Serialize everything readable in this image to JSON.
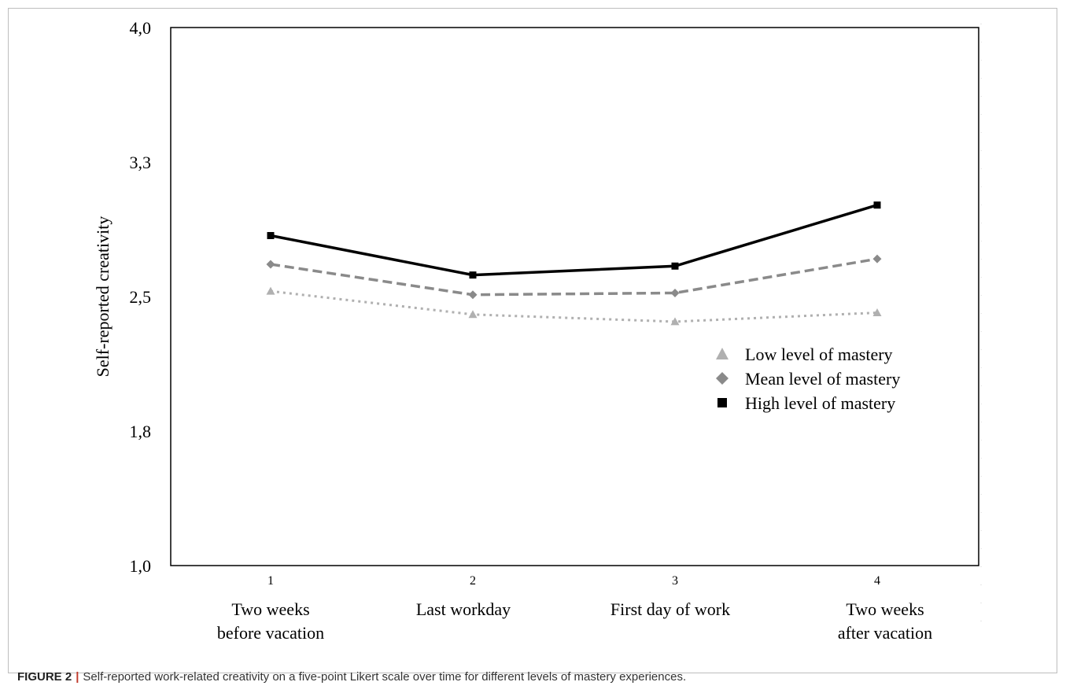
{
  "chart_data": {
    "type": "line",
    "title": "",
    "ylabel": "Self-reported creativity",
    "xlabel": "",
    "ylim": [
      1.0,
      4.0
    ],
    "ytick_labels": [
      "1,0",
      "1,8",
      "2,5",
      "3,3",
      "4,0"
    ],
    "x": [
      1,
      2,
      3,
      4
    ],
    "xtick_labels": [
      "1",
      "2",
      "3",
      "4"
    ],
    "x_category_labels": [
      [
        "Two weeks",
        "before vacation"
      ],
      [
        "Last workday"
      ],
      [
        "First day of work"
      ],
      [
        "Two weeks",
        "after vacation"
      ]
    ],
    "series": [
      {
        "name": "Low level of mastery",
        "values": [
          2.53,
          2.4,
          2.36,
          2.41
        ],
        "marker": "triangle",
        "line": "dotted",
        "color": "#b0b0b0"
      },
      {
        "name": "Mean level of mastery",
        "values": [
          2.68,
          2.51,
          2.52,
          2.71
        ],
        "marker": "diamond",
        "line": "dashed",
        "color": "#8a8a8a"
      },
      {
        "name": "High level of mastery",
        "values": [
          2.84,
          2.62,
          2.67,
          3.01
        ],
        "marker": "square",
        "line": "solid",
        "color": "#000000"
      }
    ],
    "legend_position": "right-middle",
    "grid": false
  },
  "caption": {
    "label": "FIGURE 2",
    "separator": "|",
    "text": "Self-reported work-related creativity on a five-point Likert scale over time for different levels of mastery experiences."
  }
}
